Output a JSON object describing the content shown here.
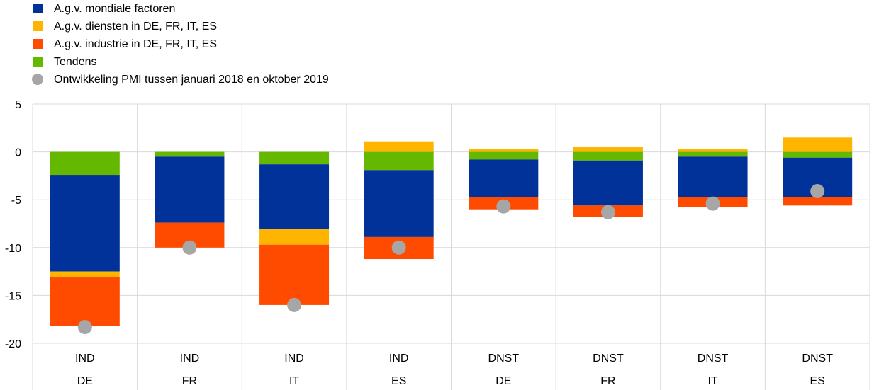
{
  "legend": [
    {
      "label": "A.g.v. mondiale factoren",
      "color": "#003299",
      "shape": "square"
    },
    {
      "label": "A.g.v. diensten in DE, FR, IT, ES",
      "color": "#FFB400",
      "shape": "square"
    },
    {
      "label": "A.g.v. industrie in DE, FR, IT, ES",
      "color": "#FF4B00",
      "shape": "square"
    },
    {
      "label": "Tendens",
      "color": "#65B800",
      "shape": "square"
    },
    {
      "label": "Ontwikkeling PMI tussen januari 2018 en oktober 2019",
      "color": "#A6A6A6",
      "shape": "circle"
    }
  ],
  "chart_data": {
    "type": "bar",
    "stacked": true,
    "ylim": [
      -20,
      5
    ],
    "yticks": [
      5,
      0,
      -5,
      -10,
      -15,
      -20
    ],
    "grid": true,
    "legend_position": "top-left",
    "categories": [
      {
        "line1": "IND",
        "line2": "DE"
      },
      {
        "line1": "IND",
        "line2": "FR"
      },
      {
        "line1": "IND",
        "line2": "IT"
      },
      {
        "line1": "IND",
        "line2": "ES"
      },
      {
        "line1": "DNST",
        "line2": "DE"
      },
      {
        "line1": "DNST",
        "line2": "FR"
      },
      {
        "line1": "DNST",
        "line2": "IT"
      },
      {
        "line1": "DNST",
        "line2": "ES"
      }
    ],
    "series": [
      {
        "name": "Tendens",
        "color": "#65B800",
        "values": [
          -2.4,
          -0.5,
          -1.3,
          -1.9,
          -0.8,
          -0.9,
          -0.5,
          -0.6
        ]
      },
      {
        "name": "A.g.v. mondiale factoren",
        "color": "#003299",
        "values": [
          -10.1,
          -6.9,
          -6.8,
          -7.0,
          -3.9,
          -4.7,
          -4.2,
          -4.1
        ]
      },
      {
        "name": "A.g.v. diensten in DE, FR, IT, ES",
        "color": "#FFB400",
        "values": [
          -0.6,
          0.0,
          -1.6,
          1.1,
          0.3,
          0.5,
          0.3,
          1.5
        ]
      },
      {
        "name": "A.g.v. industrie in DE, FR, IT, ES",
        "color": "#FF4B00",
        "values": [
          -5.1,
          -2.6,
          -6.3,
          -2.3,
          -1.3,
          -1.2,
          -1.1,
          -0.9
        ]
      }
    ],
    "dots": {
      "name": "Ontwikkeling PMI tussen januari 2018 en oktober 2019",
      "color": "#A6A6A6",
      "values": [
        -18.3,
        -10.0,
        -16.0,
        -10.0,
        -5.7,
        -6.3,
        -5.4,
        -4.1
      ]
    }
  }
}
